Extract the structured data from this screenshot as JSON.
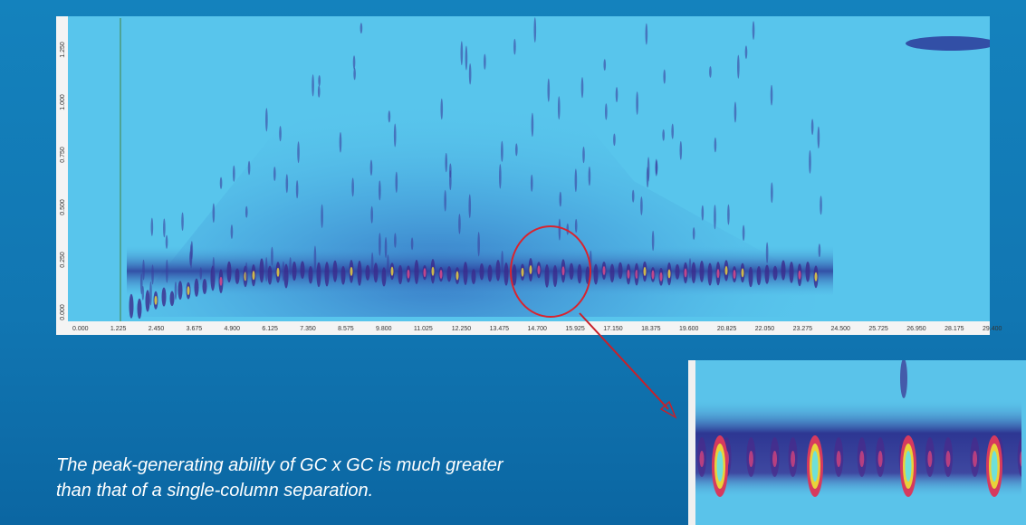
{
  "plot": {
    "x_tick_labels": [
      "0.000",
      "1.225",
      "2.450",
      "3.675",
      "4.900",
      "6.125",
      "7.350",
      "8.575",
      "9.800",
      "11.025",
      "12.250",
      "13.475",
      "14.700",
      "15.925",
      "17.150",
      "18.375",
      "19.600",
      "20.825",
      "22.050",
      "23.275",
      "24.500",
      "25.725",
      "26.950",
      "28.175",
      "29.400"
    ],
    "y_tick_labels": [
      "0.000",
      "0.250",
      "0.500",
      "0.750",
      "1.000",
      "1.250"
    ]
  },
  "caption": {
    "lines": [
      "The peak-generating ability of GC x GC is much greater",
      "than that of a single-column separation."
    ]
  }
}
